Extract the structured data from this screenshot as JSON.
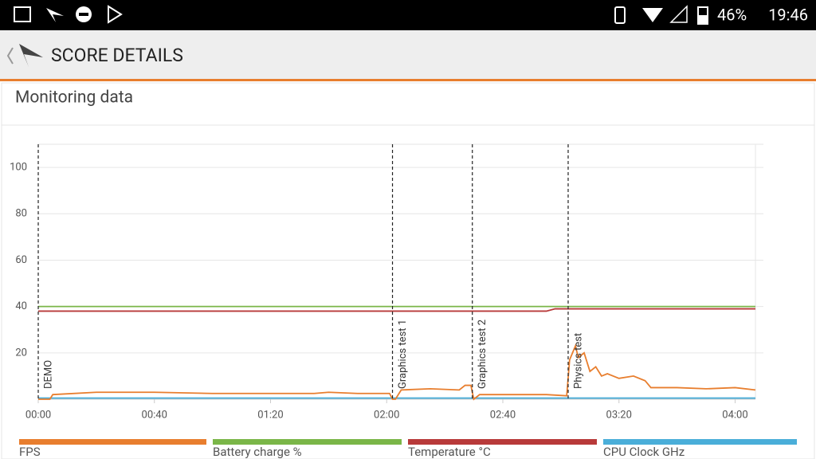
{
  "status_bar": {
    "battery": "46%",
    "time": "19:46"
  },
  "app_bar": {
    "title": "SCORE DETAILS"
  },
  "card": {
    "title": "Monitoring data"
  },
  "chart_data": {
    "type": "line",
    "xlim": [
      0,
      247
    ],
    "ylim": [
      0,
      110
    ],
    "xticks": [
      {
        "value": 0,
        "label": "00:00"
      },
      {
        "value": 40,
        "label": "00:40"
      },
      {
        "value": 80,
        "label": "01:20"
      },
      {
        "value": 120,
        "label": "02:00"
      },
      {
        "value": 160,
        "label": "02:40"
      },
      {
        "value": 200,
        "label": "03:20"
      },
      {
        "value": 240,
        "label": "04:00"
      }
    ],
    "yticks": [
      20,
      40,
      60,
      80,
      100
    ],
    "grid": true,
    "markers": [
      {
        "x": 0,
        "label": "DEMO"
      },
      {
        "x": 122,
        "label": "Graphics test 1"
      },
      {
        "x": 149.5,
        "label": "Graphics test 2"
      },
      {
        "x": 182.5,
        "label": "Physics test"
      }
    ],
    "series": [
      {
        "name": "FPS",
        "color": "#e87e2e",
        "x": [
          0,
          4,
          5,
          20,
          40,
          60,
          80,
          95,
          100,
          110,
          121,
          122,
          123,
          125,
          135,
          145,
          147,
          149,
          150,
          152,
          160,
          175,
          182,
          183,
          185,
          186,
          188,
          190,
          192,
          194,
          196,
          200,
          205,
          209,
          211,
          220,
          230,
          240,
          247
        ],
        "values": [
          0,
          0,
          2,
          3,
          3,
          2.5,
          2.5,
          2.5,
          3,
          2.5,
          2.5,
          0,
          0,
          4,
          4.5,
          4,
          6,
          6,
          0,
          2,
          2,
          2,
          1.5,
          17,
          23,
          18,
          20,
          12,
          14,
          10,
          11,
          9,
          10,
          8,
          5,
          5,
          4.5,
          5,
          4
        ]
      },
      {
        "name": "Battery charge %",
        "color": "#7ab648",
        "x": [
          0,
          247
        ],
        "values": [
          40,
          40
        ]
      },
      {
        "name": "Temperature °C",
        "color": "#b83a3a",
        "x": [
          0,
          175,
          178,
          247
        ],
        "values": [
          38,
          38,
          39,
          39
        ]
      },
      {
        "name": "CPU Clock GHz",
        "color": "#4aaed9",
        "x": [
          0,
          247
        ],
        "values": [
          0.5,
          0.5
        ]
      }
    ]
  }
}
